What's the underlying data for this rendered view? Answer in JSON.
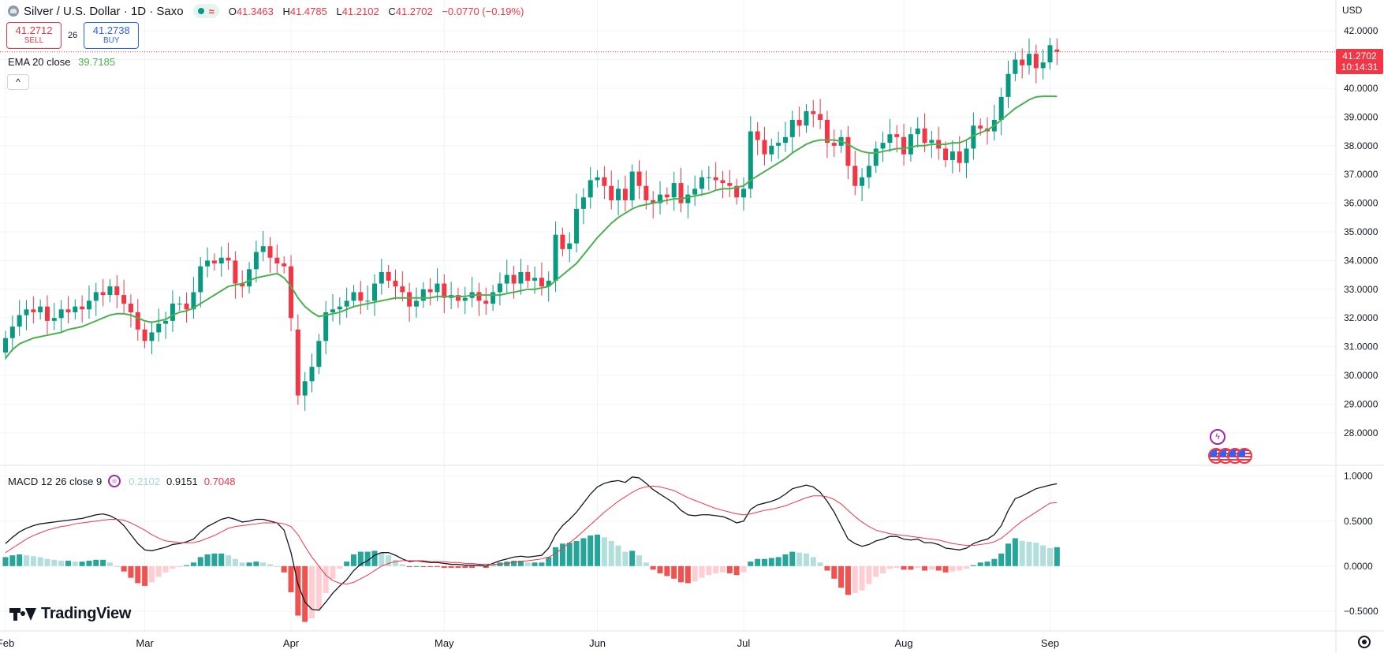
{
  "header": {
    "title": "Silver / U.S. Dollar · 1D · Saxo",
    "ohlc": {
      "o_label": "O",
      "o": "41.3463",
      "h_label": "H",
      "h": "41.4785",
      "l_label": "L",
      "l": "41.2102",
      "c_label": "C",
      "c": "41.2702",
      "change": "−0.0770 (−0.19%)"
    }
  },
  "trade": {
    "sell_price": "41.2712",
    "sell_label": "SELL",
    "spread": "26",
    "buy_price": "41.2738",
    "buy_label": "BUY"
  },
  "ema": {
    "label": "EMA 20 close",
    "value": "39.7185"
  },
  "macd_legend": {
    "label": "MACD 12 26 close 9",
    "hist": "0.2102",
    "macd": "0.9151",
    "signal": "0.7048"
  },
  "price_axis": {
    "currency": "USD",
    "last_price": "41.2702",
    "countdown": "10:14:31"
  },
  "brand": "TradingView",
  "colors": {
    "up": "#089981",
    "down": "#f23645",
    "ema": "#4caf50",
    "macd": "#131722",
    "signal": "#f23645",
    "hist_up_strong": "#26a69a",
    "hist_up_weak": "#b2dfdb",
    "hist_down_strong": "#ef5350",
    "hist_down_weak": "#ffcdd2"
  },
  "icons": {
    "events_bolt": "lightning-icon",
    "events_flags": "us-flag-icon",
    "settings": "gear-icon"
  },
  "chart_data": [
    {
      "type": "candlestick",
      "title": "Silver / U.S. Dollar · 1D · Saxo",
      "ylim": [
        27.2,
        42.8
      ],
      "y_ticks": [
        "28.0000",
        "29.0000",
        "30.0000",
        "31.0000",
        "32.0000",
        "33.0000",
        "34.0000",
        "35.0000",
        "36.0000",
        "37.0000",
        "38.0000",
        "39.0000",
        "40.0000",
        "41.0000",
        "42.0000"
      ],
      "x_ticks": [
        {
          "label": "Feb",
          "index": 0
        },
        {
          "label": "Mar",
          "index": 20
        },
        {
          "label": "Apr",
          "index": 41
        },
        {
          "label": "May",
          "index": 63
        },
        {
          "label": "Jun",
          "index": 85
        },
        {
          "label": "Jul",
          "index": 106
        },
        {
          "label": "Aug",
          "index": 129
        },
        {
          "label": "Sep",
          "index": 150
        }
      ],
      "close": [
        31.3,
        31.7,
        32.1,
        32.3,
        32.2,
        32.4,
        31.9,
        32.0,
        32.3,
        32.2,
        32.4,
        32.3,
        32.6,
        32.9,
        32.8,
        33.1,
        32.8,
        32.5,
        32.2,
        31.6,
        31.2,
        31.5,
        31.8,
        31.9,
        32.5,
        32.5,
        32.3,
        32.9,
        33.8,
        34.0,
        33.9,
        34.1,
        34.0,
        33.2,
        33.1,
        33.7,
        34.3,
        34.5,
        34.1,
        33.9,
        33.8,
        32.0,
        29.3,
        29.8,
        30.3,
        31.2,
        32.2,
        32.3,
        32.4,
        32.6,
        32.9,
        32.6,
        32.6,
        33.2,
        33.6,
        33.3,
        33.1,
        32.9,
        32.4,
        32.6,
        33.0,
        32.9,
        33.2,
        32.7,
        32.8,
        32.6,
        32.7,
        32.9,
        32.6,
        32.5,
        32.9,
        33.2,
        33.5,
        33.2,
        33.6,
        33.3,
        33.4,
        33.1,
        33.3,
        34.9,
        34.4,
        34.6,
        35.8,
        36.2,
        36.8,
        36.9,
        36.6,
        36.1,
        36.5,
        36.1,
        37.1,
        36.6,
        36.1,
        36.0,
        36.3,
        36.2,
        36.7,
        36.0,
        36.3,
        36.5,
        36.9,
        36.9,
        36.8,
        36.7,
        36.6,
        36.2,
        36.5,
        38.5,
        38.2,
        37.7,
        38.0,
        38.1,
        38.3,
        38.9,
        38.7,
        39.2,
        39.1,
        38.9,
        38.1,
        38.0,
        38.3,
        37.3,
        36.6,
        36.9,
        37.3,
        37.9,
        38.1,
        38.4,
        38.3,
        37.7,
        38.4,
        38.6,
        38.1,
        38.2,
        37.9,
        37.5,
        37.8,
        37.4,
        37.9,
        38.7,
        38.6,
        38.5,
        38.9,
        39.7,
        40.5,
        41.0,
        40.8,
        41.2,
        40.7,
        40.9,
        41.5,
        41.27
      ],
      "open": [
        30.8,
        31.3,
        31.7,
        32.1,
        32.3,
        32.2,
        32.4,
        31.9,
        32.0,
        32.3,
        32.2,
        32.4,
        32.3,
        32.6,
        32.9,
        32.8,
        33.1,
        32.8,
        32.5,
        32.2,
        31.6,
        31.2,
        31.5,
        31.8,
        31.9,
        32.5,
        32.5,
        32.3,
        32.9,
        33.8,
        34.0,
        33.9,
        34.1,
        34.0,
        33.2,
        33.1,
        33.7,
        34.3,
        34.5,
        34.1,
        33.9,
        33.8,
        31.6,
        29.3,
        29.8,
        30.3,
        31.2,
        32.2,
        32.3,
        32.4,
        32.6,
        32.9,
        32.6,
        32.6,
        33.2,
        33.6,
        33.3,
        33.1,
        32.9,
        32.4,
        32.6,
        33.0,
        32.9,
        33.2,
        32.7,
        32.8,
        32.6,
        32.7,
        32.9,
        32.6,
        32.5,
        32.9,
        33.2,
        33.5,
        33.2,
        33.6,
        33.3,
        33.4,
        33.1,
        33.3,
        34.9,
        34.4,
        34.6,
        35.8,
        36.2,
        36.8,
        36.9,
        36.6,
        36.1,
        36.5,
        36.1,
        37.1,
        36.6,
        36.1,
        36.0,
        36.3,
        36.2,
        36.7,
        36.0,
        36.3,
        36.5,
        36.9,
        36.9,
        36.8,
        36.7,
        36.6,
        36.2,
        36.5,
        38.5,
        38.2,
        37.7,
        38.0,
        38.1,
        38.3,
        38.9,
        38.7,
        39.2,
        39.1,
        38.9,
        38.1,
        38.0,
        38.3,
        37.3,
        36.6,
        36.9,
        37.3,
        37.9,
        38.1,
        38.4,
        38.3,
        37.7,
        38.4,
        38.6,
        38.1,
        38.2,
        37.9,
        37.5,
        37.8,
        37.4,
        37.9,
        38.7,
        38.6,
        38.5,
        38.9,
        39.7,
        40.5,
        41.0,
        40.8,
        41.2,
        40.7,
        40.9,
        41.35
      ],
      "ema20": [
        30.6,
        30.9,
        31.1,
        31.2,
        31.3,
        31.35,
        31.4,
        31.45,
        31.5,
        31.6,
        31.65,
        31.7,
        31.8,
        31.9,
        32.0,
        32.1,
        32.15,
        32.15,
        32.1,
        32.0,
        31.9,
        31.85,
        31.9,
        31.95,
        32.1,
        32.2,
        32.25,
        32.35,
        32.5,
        32.65,
        32.8,
        32.95,
        33.1,
        33.15,
        33.2,
        33.3,
        33.4,
        33.45,
        33.5,
        33.55,
        33.4,
        33.1,
        32.7,
        32.4,
        32.2,
        32.05,
        32.1,
        32.15,
        32.2,
        32.3,
        32.4,
        32.45,
        32.5,
        32.55,
        32.6,
        32.65,
        32.7,
        32.7,
        32.7,
        32.7,
        32.7,
        32.7,
        32.75,
        32.75,
        32.75,
        32.75,
        32.75,
        32.8,
        32.8,
        32.8,
        32.8,
        32.8,
        32.85,
        32.9,
        32.95,
        33.0,
        33.0,
        33.05,
        33.1,
        33.3,
        33.5,
        33.7,
        33.9,
        34.2,
        34.5,
        34.8,
        35.05,
        35.3,
        35.5,
        35.65,
        35.8,
        35.9,
        35.95,
        36.0,
        36.05,
        36.1,
        36.15,
        36.15,
        36.2,
        36.25,
        36.3,
        36.35,
        36.45,
        36.5,
        36.5,
        36.55,
        36.6,
        36.8,
        36.95,
        37.1,
        37.25,
        37.4,
        37.55,
        37.75,
        37.9,
        38.05,
        38.15,
        38.2,
        38.2,
        38.2,
        38.15,
        38.05,
        37.9,
        37.8,
        37.75,
        37.75,
        37.8,
        37.85,
        37.9,
        37.9,
        37.95,
        38.0,
        38.0,
        38.05,
        38.05,
        38.05,
        38.1,
        38.1,
        38.2,
        38.35,
        38.45,
        38.55,
        38.7,
        38.9,
        39.1,
        39.3,
        39.45,
        39.6,
        39.7,
        39.72,
        39.72,
        39.7185
      ]
    },
    {
      "type": "line",
      "title": "MACD 12 26 close 9",
      "ylim": [
        -0.65,
        1.05
      ],
      "y_ticks": [
        "−0.5000",
        "0.0000",
        "0.5000",
        "1.0000"
      ],
      "series": [
        {
          "name": "MACD",
          "values": [
            0.25,
            0.32,
            0.38,
            0.42,
            0.45,
            0.47,
            0.48,
            0.49,
            0.5,
            0.51,
            0.52,
            0.53,
            0.55,
            0.57,
            0.58,
            0.56,
            0.52,
            0.45,
            0.35,
            0.25,
            0.18,
            0.17,
            0.19,
            0.21,
            0.24,
            0.25,
            0.27,
            0.3,
            0.38,
            0.44,
            0.48,
            0.52,
            0.54,
            0.52,
            0.49,
            0.5,
            0.52,
            0.52,
            0.5,
            0.48,
            0.4,
            0.15,
            -0.2,
            -0.4,
            -0.48,
            -0.49,
            -0.4,
            -0.3,
            -0.22,
            -0.15,
            -0.05,
            0.02,
            0.06,
            0.12,
            0.15,
            0.15,
            0.12,
            0.08,
            0.05,
            0.06,
            0.05,
            0.04,
            0.04,
            0.03,
            0.02,
            0.02,
            0.01,
            0.01,
            0.01,
            0.0,
            0.03,
            0.06,
            0.08,
            0.1,
            0.11,
            0.1,
            0.11,
            0.12,
            0.2,
            0.35,
            0.45,
            0.52,
            0.6,
            0.7,
            0.8,
            0.88,
            0.92,
            0.94,
            0.95,
            0.93,
            0.99,
            0.98,
            0.92,
            0.85,
            0.8,
            0.75,
            0.7,
            0.62,
            0.57,
            0.56,
            0.57,
            0.57,
            0.56,
            0.55,
            0.52,
            0.48,
            0.5,
            0.63,
            0.68,
            0.7,
            0.72,
            0.75,
            0.8,
            0.86,
            0.88,
            0.9,
            0.88,
            0.82,
            0.72,
            0.6,
            0.45,
            0.3,
            0.25,
            0.22,
            0.24,
            0.28,
            0.3,
            0.33,
            0.33,
            0.3,
            0.29,
            0.3,
            0.26,
            0.26,
            0.24,
            0.2,
            0.19,
            0.18,
            0.2,
            0.25,
            0.28,
            0.3,
            0.35,
            0.45,
            0.62,
            0.75,
            0.78,
            0.82,
            0.86,
            0.88,
            0.9,
            0.9151
          ]
        },
        {
          "name": "Signal",
          "values": [
            0.15,
            0.2,
            0.25,
            0.3,
            0.34,
            0.37,
            0.4,
            0.42,
            0.44,
            0.45,
            0.47,
            0.48,
            0.49,
            0.5,
            0.51,
            0.52,
            0.52,
            0.51,
            0.48,
            0.44,
            0.4,
            0.35,
            0.31,
            0.28,
            0.27,
            0.26,
            0.26,
            0.26,
            0.28,
            0.31,
            0.34,
            0.38,
            0.42,
            0.44,
            0.45,
            0.46,
            0.47,
            0.48,
            0.48,
            0.48,
            0.47,
            0.44,
            0.35,
            0.22,
            0.1,
            0.0,
            -0.1,
            -0.16,
            -0.19,
            -0.2,
            -0.18,
            -0.14,
            -0.1,
            -0.05,
            0.0,
            0.03,
            0.05,
            0.06,
            0.06,
            0.06,
            0.06,
            0.05,
            0.05,
            0.05,
            0.04,
            0.04,
            0.03,
            0.03,
            0.02,
            0.02,
            0.02,
            0.02,
            0.03,
            0.04,
            0.05,
            0.06,
            0.07,
            0.08,
            0.1,
            0.14,
            0.2,
            0.26,
            0.32,
            0.39,
            0.46,
            0.53,
            0.6,
            0.66,
            0.72,
            0.77,
            0.82,
            0.86,
            0.88,
            0.89,
            0.88,
            0.86,
            0.84,
            0.8,
            0.76,
            0.73,
            0.7,
            0.67,
            0.64,
            0.62,
            0.6,
            0.58,
            0.57,
            0.58,
            0.6,
            0.62,
            0.63,
            0.65,
            0.67,
            0.7,
            0.73,
            0.76,
            0.78,
            0.78,
            0.77,
            0.74,
            0.69,
            0.62,
            0.55,
            0.49,
            0.44,
            0.4,
            0.38,
            0.36,
            0.35,
            0.34,
            0.33,
            0.32,
            0.31,
            0.3,
            0.29,
            0.27,
            0.25,
            0.24,
            0.23,
            0.23,
            0.24,
            0.25,
            0.27,
            0.31,
            0.37,
            0.44,
            0.5,
            0.55,
            0.6,
            0.65,
            0.7,
            0.7048
          ]
        },
        {
          "name": "Histogram",
          "values": [
            0.1,
            0.12,
            0.13,
            0.12,
            0.11,
            0.1,
            0.08,
            0.07,
            0.06,
            0.06,
            0.05,
            0.05,
            0.06,
            0.07,
            0.07,
            0.04,
            0.0,
            -0.06,
            -0.13,
            -0.19,
            -0.22,
            -0.18,
            -0.12,
            -0.07,
            -0.03,
            -0.01,
            0.01,
            0.04,
            0.1,
            0.13,
            0.14,
            0.14,
            0.12,
            0.08,
            0.04,
            0.04,
            0.05,
            0.04,
            0.02,
            0.0,
            -0.07,
            -0.29,
            -0.55,
            -0.62,
            -0.58,
            -0.49,
            -0.3,
            -0.14,
            -0.03,
            0.05,
            0.13,
            0.16,
            0.16,
            0.17,
            0.15,
            0.12,
            0.07,
            0.02,
            -0.01,
            0.0,
            -0.01,
            -0.01,
            -0.01,
            -0.02,
            -0.02,
            -0.02,
            -0.02,
            -0.02,
            -0.01,
            -0.02,
            0.01,
            0.04,
            0.05,
            0.06,
            0.06,
            0.04,
            0.04,
            0.04,
            0.1,
            0.21,
            0.25,
            0.26,
            0.28,
            0.31,
            0.34,
            0.35,
            0.32,
            0.28,
            0.23,
            0.16,
            0.17,
            0.12,
            0.04,
            -0.04,
            -0.08,
            -0.11,
            -0.14,
            -0.18,
            -0.19,
            -0.17,
            -0.13,
            -0.1,
            -0.08,
            -0.07,
            -0.08,
            -0.1,
            -0.07,
            0.05,
            0.08,
            0.08,
            0.09,
            0.1,
            0.13,
            0.16,
            0.15,
            0.14,
            0.1,
            0.04,
            -0.05,
            -0.14,
            -0.24,
            -0.32,
            -0.3,
            -0.27,
            -0.2,
            -0.12,
            -0.08,
            -0.03,
            -0.02,
            -0.04,
            -0.04,
            -0.02,
            -0.05,
            -0.04,
            -0.05,
            -0.07,
            -0.06,
            -0.05,
            -0.03,
            0.01,
            0.04,
            0.05,
            0.08,
            0.14,
            0.25,
            0.31,
            0.28,
            0.27,
            0.26,
            0.23,
            0.2,
            0.2102
          ]
        }
      ]
    }
  ]
}
